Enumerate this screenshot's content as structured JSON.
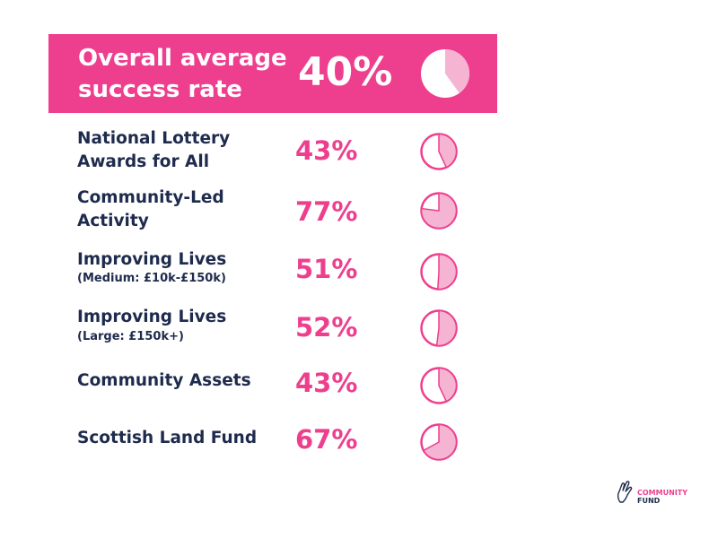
{
  "header": {
    "title_line1": "Overall average",
    "title_line2": "success rate",
    "value_label": "40%"
  },
  "rows": [
    {
      "name_line1": "National Lottery",
      "name_line2": "Awards for All",
      "sub": "",
      "value_label": "43%"
    },
    {
      "name_line1": "Community-Led",
      "name_line2": "Activity",
      "sub": "",
      "value_label": "77%"
    },
    {
      "name_line1": "Improving Lives",
      "name_line2": "",
      "sub": "(Medium: £10k-£150k)",
      "value_label": "51%"
    },
    {
      "name_line1": "Improving Lives",
      "name_line2": "",
      "sub": "(Large: £150k+)",
      "value_label": "52%"
    },
    {
      "name_line1": "Community Assets",
      "name_line2": "",
      "sub": "",
      "value_label": "43%"
    },
    {
      "name_line1": "Scottish Land Fund",
      "name_line2": "",
      "sub": "",
      "value_label": "67%"
    }
  ],
  "logo": {
    "line1": "COMMUNITY",
    "line2": "FUND"
  },
  "colors": {
    "accent": "#ee3f8e",
    "text_dark": "#1e2b4d",
    "pie_fill": "#f4b4d2",
    "header_pie_fill": "#f4b4d2"
  },
  "chart_data": {
    "type": "table",
    "title": "Overall average success rate",
    "overall_value": 40,
    "overall_label": "40%",
    "unit": "%",
    "categories": [
      "National Lottery Awards for All",
      "Community-Led Activity",
      "Improving Lives (Medium: £10k-£150k)",
      "Improving Lives (Large: £150k+)",
      "Community Assets",
      "Scottish Land Fund"
    ],
    "values": [
      43,
      77,
      51,
      52,
      43,
      67
    ]
  }
}
